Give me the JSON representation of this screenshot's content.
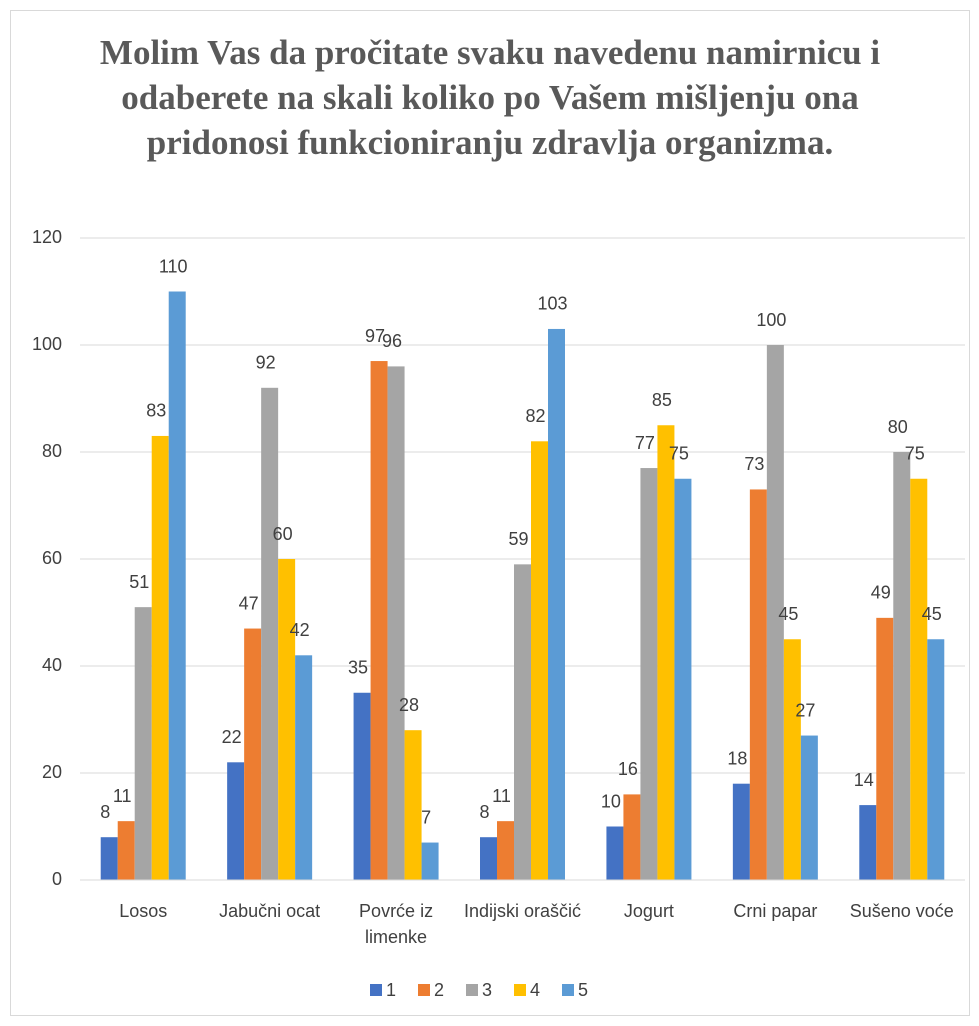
{
  "chart_data": {
    "type": "bar",
    "title": "Molim Vas da pročitate svaku navedenu namirnicu i odaberete na skali koliko po Vašem mišljenju ona pridonosi funkcioniranju zdravlja organizma.",
    "categories": [
      "Losos",
      "Jabučni ocat",
      "Povrće iz limenke",
      "Indijski oraščić",
      "Jogurt",
      "Crni papar",
      "Sušeno voće"
    ],
    "series": [
      {
        "name": "1",
        "color": "#4472c4",
        "values": [
          8,
          22,
          35,
          8,
          10,
          18,
          14
        ]
      },
      {
        "name": "2",
        "color": "#ed7d31",
        "values": [
          11,
          47,
          97,
          11,
          16,
          73,
          49
        ]
      },
      {
        "name": "3",
        "color": "#a5a5a5",
        "values": [
          51,
          92,
          96,
          59,
          77,
          100,
          80
        ]
      },
      {
        "name": "4",
        "color": "#ffc000",
        "values": [
          83,
          60,
          28,
          82,
          85,
          45,
          75
        ]
      },
      {
        "name": "5",
        "color": "#5b9bd5",
        "values": [
          110,
          42,
          7,
          103,
          75,
          27,
          45
        ]
      }
    ],
    "ylim": [
      0,
      120
    ],
    "yticks": [
      0,
      20,
      40,
      60,
      80,
      100,
      120
    ],
    "grid": true,
    "legend": "bottom"
  }
}
